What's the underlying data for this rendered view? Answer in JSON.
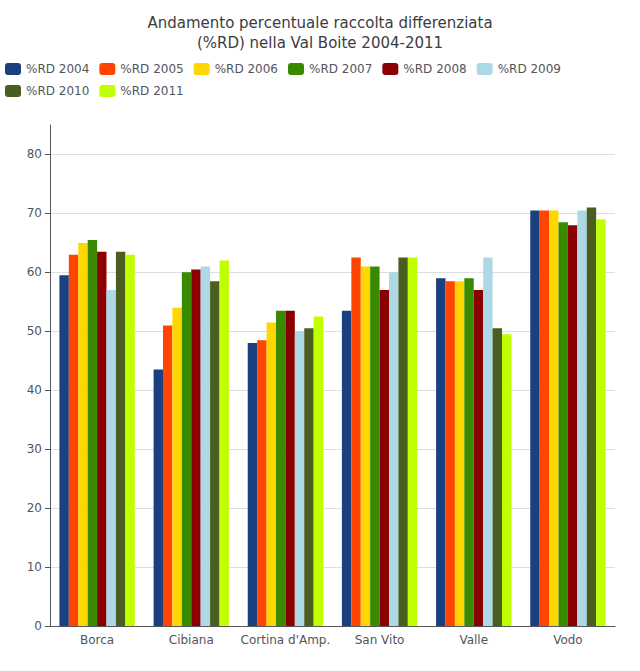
{
  "chart_data": {
    "type": "bar",
    "title": "Andamento percentuale raccolta differenziata\n(%RD) nella Val Boite 2004-2011",
    "categories": [
      "Borca",
      "Cibiana",
      "Cortina d'Amp.",
      "San Vito",
      "Valle",
      "Vodo"
    ],
    "series": [
      {
        "name": "%RD 2004",
        "color": "#1A4080",
        "values": [
          59.5,
          43.5,
          48.0,
          53.5,
          59.0,
          70.5
        ]
      },
      {
        "name": "%RD 2005",
        "color": "#FF4500",
        "values": [
          63.0,
          51.0,
          48.5,
          62.5,
          58.5,
          70.5
        ]
      },
      {
        "name": "%RD 2006",
        "color": "#FFD700",
        "values": [
          65.0,
          54.0,
          51.5,
          61.0,
          58.5,
          70.5
        ]
      },
      {
        "name": "%RD 2007",
        "color": "#3A8A00",
        "values": [
          65.5,
          60.0,
          53.5,
          61.0,
          59.0,
          68.5
        ]
      },
      {
        "name": "%RD 2008",
        "color": "#8B0000",
        "values": [
          63.5,
          60.5,
          53.5,
          57.0,
          57.0,
          68.0
        ]
      },
      {
        "name": "%RD 2009",
        "color": "#ADD8E6",
        "values": [
          57.0,
          61.0,
          50.0,
          60.0,
          62.5,
          70.5
        ]
      },
      {
        "name": "%RD 2010",
        "color": "#4A5E20",
        "values": [
          63.5,
          58.5,
          50.5,
          62.5,
          50.5,
          71.0
        ]
      },
      {
        "name": "%RD 2011",
        "color": "#BFFF00",
        "values": [
          63.0,
          62.0,
          52.5,
          62.5,
          49.5,
          69.0
        ]
      }
    ],
    "ylim": [
      0,
      85
    ],
    "yticks": [
      0,
      10,
      20,
      30,
      40,
      50,
      60,
      70,
      80
    ],
    "grid": true,
    "legend": "upper left"
  }
}
